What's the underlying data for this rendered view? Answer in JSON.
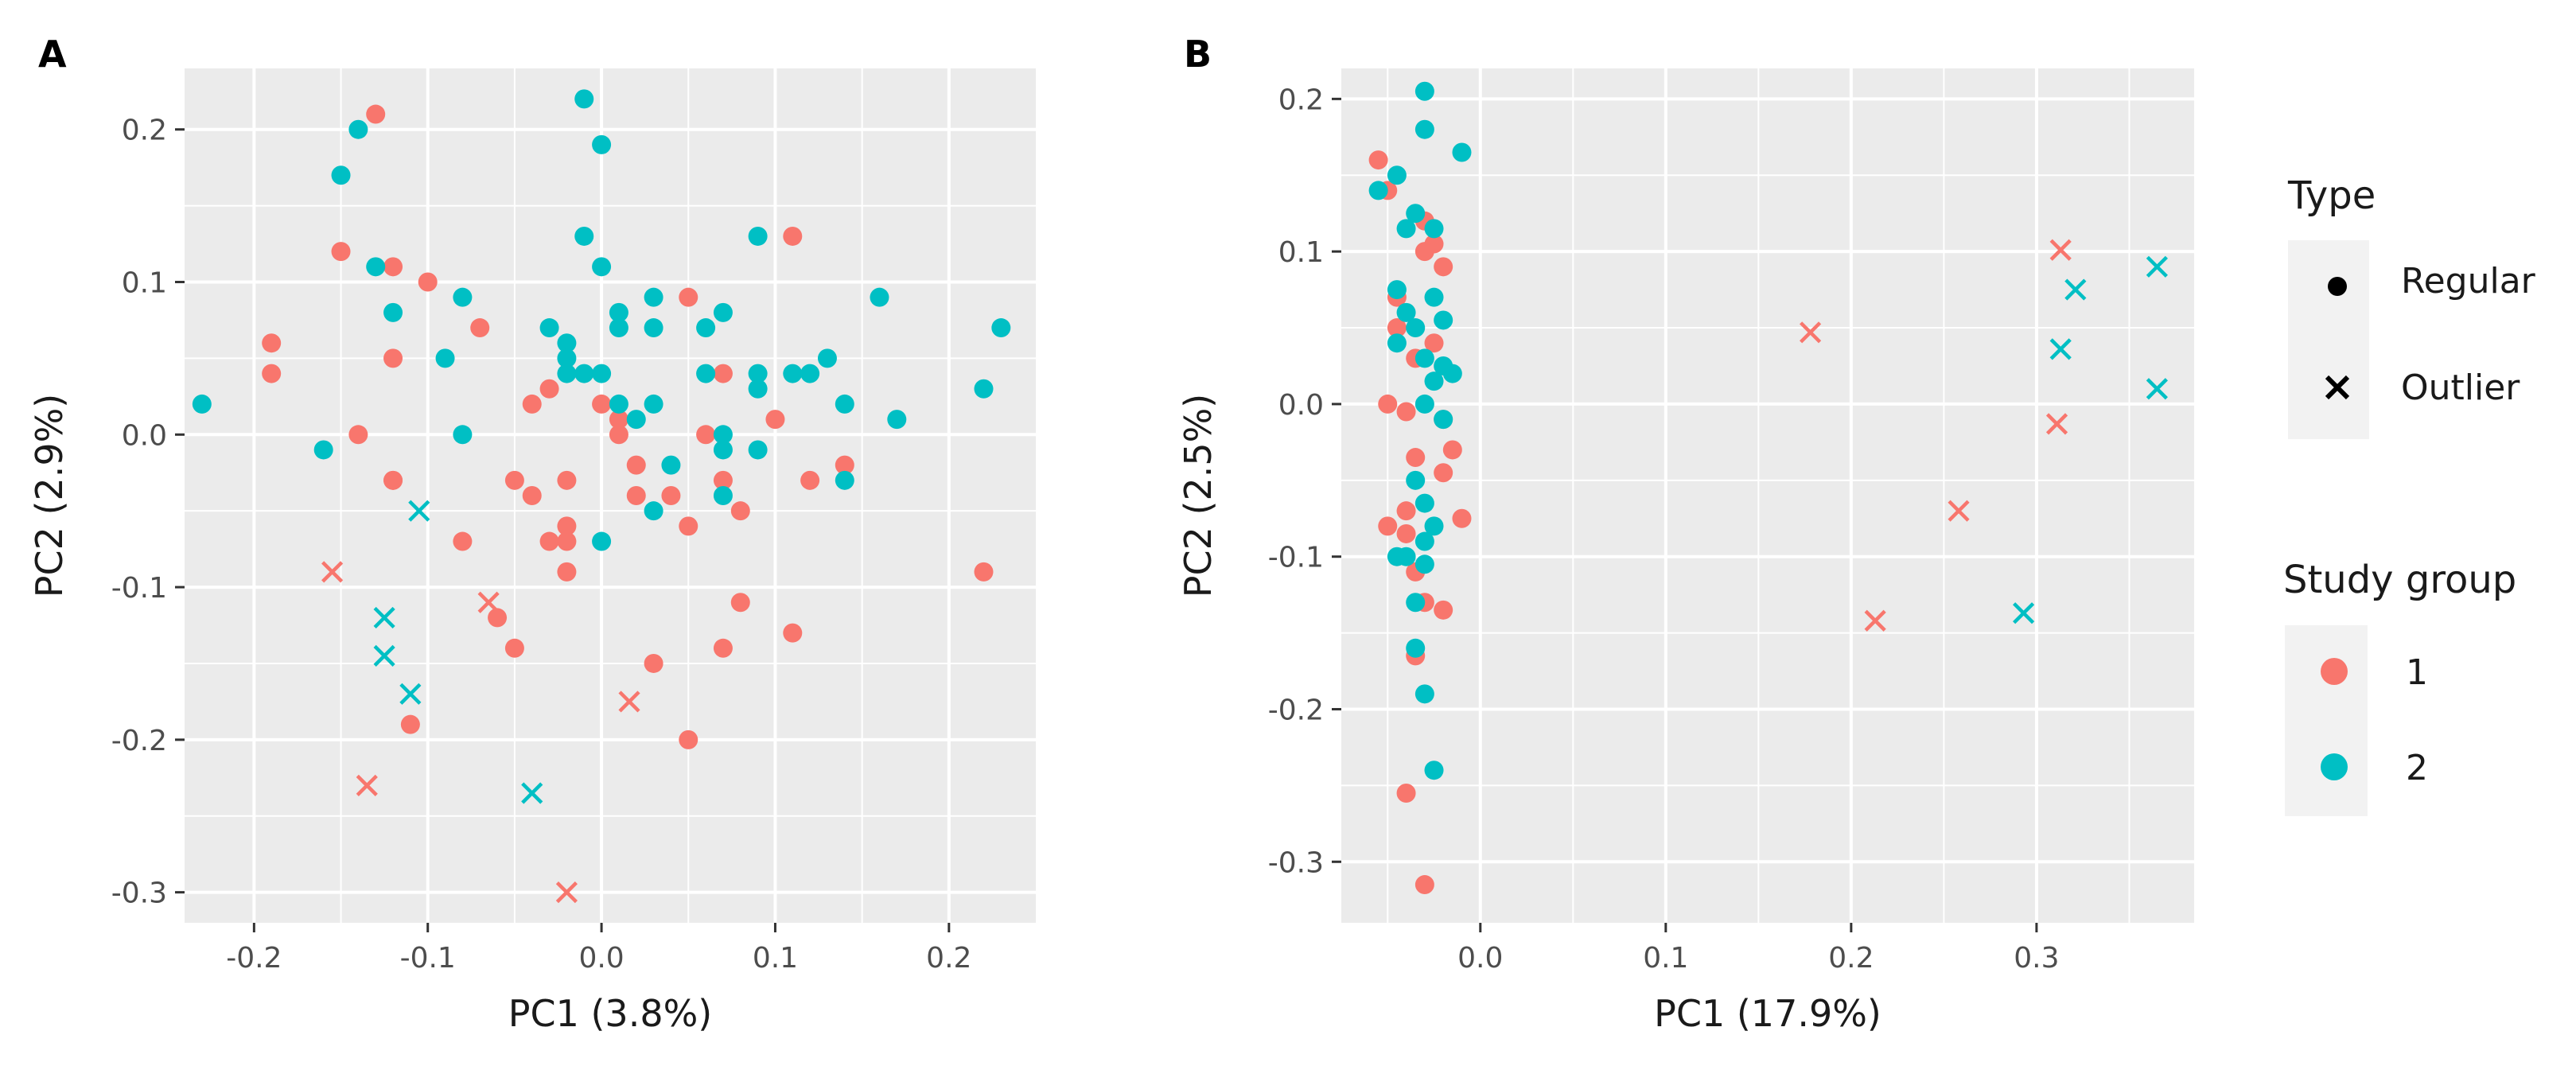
{
  "colors": {
    "group1": "#F8766D",
    "group2": "#00BFC4",
    "panel_bg": "#EBEBEB",
    "grid": "#FFFFFF"
  },
  "legend": {
    "type_title": "Type",
    "type_items": [
      {
        "label": "Regular",
        "shape": "point"
      },
      {
        "label": "Outlier",
        "shape": "cross"
      }
    ],
    "group_title": "Study group",
    "group_items": [
      {
        "label": "1",
        "group": 1
      },
      {
        "label": "2",
        "group": 2
      }
    ]
  },
  "chart_data": [
    {
      "panel": "A",
      "type": "scatter",
      "xlabel": "PC1 (3.8%)",
      "ylabel": "PC2 (2.9%)",
      "xlim": [
        -0.24,
        0.25
      ],
      "ylim": [
        -0.32,
        0.24
      ],
      "xticks": [
        -0.2,
        -0.1,
        0.0,
        0.1,
        0.2
      ],
      "xtick_labels": [
        "-0.2",
        "-0.1",
        "0.0",
        "0.1",
        "0.2"
      ],
      "yticks": [
        -0.3,
        -0.2,
        -0.1,
        0.0,
        0.1,
        0.2
      ],
      "ytick_labels": [
        "-0.3",
        "-0.2",
        "-0.1",
        "0.0",
        "0.1",
        "0.2"
      ],
      "series": [
        {
          "name": "1",
          "type": "Regular",
          "points": [
            [
              -0.13,
              0.21
            ],
            [
              -0.15,
              0.12
            ],
            [
              -0.12,
              0.11
            ],
            [
              -0.19,
              0.06
            ],
            [
              -0.19,
              0.04
            ],
            [
              -0.1,
              0.1
            ],
            [
              -0.12,
              0.05
            ],
            [
              -0.07,
              0.07
            ],
            [
              -0.14,
              0.0
            ],
            [
              -0.12,
              -0.03
            ],
            [
              -0.12,
              -0.03
            ],
            [
              -0.08,
              -0.07
            ],
            [
              -0.11,
              -0.19
            ],
            [
              -0.05,
              -0.14
            ],
            [
              -0.06,
              -0.12
            ],
            [
              -0.03,
              0.03
            ],
            [
              -0.04,
              0.02
            ],
            [
              -0.05,
              -0.03
            ],
            [
              -0.04,
              -0.04
            ],
            [
              -0.02,
              -0.03
            ],
            [
              -0.03,
              -0.07
            ],
            [
              -0.02,
              -0.07
            ],
            [
              -0.02,
              -0.06
            ],
            [
              -0.02,
              -0.09
            ],
            [
              0.0,
              0.02
            ],
            [
              0.01,
              0.01
            ],
            [
              0.01,
              0.0
            ],
            [
              0.02,
              -0.02
            ],
            [
              0.02,
              -0.04
            ],
            [
              0.04,
              -0.04
            ],
            [
              0.03,
              -0.15
            ],
            [
              0.05,
              0.09
            ],
            [
              0.06,
              0.0
            ],
            [
              0.07,
              -0.03
            ],
            [
              0.05,
              -0.06
            ],
            [
              0.07,
              0.04
            ],
            [
              0.08,
              -0.05
            ],
            [
              0.08,
              -0.11
            ],
            [
              0.07,
              -0.14
            ],
            [
              0.05,
              -0.2
            ],
            [
              0.1,
              0.01
            ],
            [
              0.11,
              0.13
            ],
            [
              0.11,
              -0.13
            ],
            [
              0.12,
              -0.03
            ],
            [
              0.14,
              -0.02
            ],
            [
              0.22,
              -0.09
            ]
          ]
        },
        {
          "name": "2",
          "type": "Regular",
          "points": [
            [
              -0.23,
              0.02
            ],
            [
              -0.15,
              0.17
            ],
            [
              -0.14,
              0.2
            ],
            [
              -0.13,
              0.11
            ],
            [
              -0.12,
              0.08
            ],
            [
              -0.16,
              -0.01
            ],
            [
              -0.09,
              0.05
            ],
            [
              -0.08,
              0.09
            ],
            [
              -0.08,
              0.0
            ],
            [
              -0.01,
              0.22
            ],
            [
              0.0,
              0.19
            ],
            [
              -0.01,
              0.13
            ],
            [
              0.0,
              0.11
            ],
            [
              -0.02,
              0.06
            ],
            [
              -0.03,
              0.07
            ],
            [
              -0.02,
              0.05
            ],
            [
              -0.02,
              0.04
            ],
            [
              -0.01,
              0.04
            ],
            [
              0.0,
              0.04
            ],
            [
              0.01,
              0.08
            ],
            [
              0.01,
              0.07
            ],
            [
              0.01,
              0.02
            ],
            [
              0.02,
              0.01
            ],
            [
              0.03,
              0.02
            ],
            [
              0.03,
              0.07
            ],
            [
              0.03,
              0.09
            ],
            [
              0.04,
              -0.02
            ],
            [
              0.03,
              -0.05
            ],
            [
              0.0,
              -0.07
            ],
            [
              0.06,
              0.04
            ],
            [
              0.06,
              0.07
            ],
            [
              0.07,
              0.08
            ],
            [
              0.07,
              0.0
            ],
            [
              0.07,
              -0.01
            ],
            [
              0.07,
              -0.04
            ],
            [
              0.09,
              0.13
            ],
            [
              0.09,
              0.04
            ],
            [
              0.09,
              0.03
            ],
            [
              0.09,
              -0.01
            ],
            [
              0.11,
              0.04
            ],
            [
              0.12,
              0.04
            ],
            [
              0.13,
              0.05
            ],
            [
              0.14,
              0.02
            ],
            [
              0.14,
              -0.03
            ],
            [
              0.16,
              0.09
            ],
            [
              0.17,
              0.01
            ],
            [
              0.22,
              0.03
            ],
            [
              0.23,
              0.07
            ]
          ]
        },
        {
          "name": "1",
          "type": "Outlier",
          "points": [
            [
              -0.155,
              -0.09
            ],
            [
              -0.065,
              -0.11
            ],
            [
              -0.135,
              -0.23
            ],
            [
              0.016,
              -0.175
            ],
            [
              -0.02,
              -0.3
            ]
          ]
        },
        {
          "name": "2",
          "type": "Outlier",
          "points": [
            [
              -0.105,
              -0.05
            ],
            [
              -0.125,
              -0.12
            ],
            [
              -0.125,
              -0.145
            ],
            [
              -0.11,
              -0.17
            ],
            [
              -0.04,
              -0.235
            ]
          ]
        }
      ]
    },
    {
      "panel": "B",
      "type": "scatter",
      "xlabel": "PC1 (17.9%)",
      "ylabel": "PC2 (2.5%)",
      "xlim": [
        -0.075,
        0.385
      ],
      "ylim": [
        -0.34,
        0.22
      ],
      "xticks": [
        0.0,
        0.1,
        0.2,
        0.3
      ],
      "xtick_labels": [
        "0.0",
        "0.1",
        "0.2",
        "0.3"
      ],
      "yticks": [
        -0.3,
        -0.2,
        -0.1,
        0.0,
        0.1,
        0.2
      ],
      "ytick_labels": [
        "-0.3",
        "-0.2",
        "-0.1",
        "0.0",
        "0.1",
        "0.2"
      ],
      "series": [
        {
          "name": "1",
          "type": "Regular",
          "points": [
            [
              -0.055,
              0.16
            ],
            [
              -0.05,
              0.14
            ],
            [
              -0.03,
              0.12
            ],
            [
              -0.025,
              0.105
            ],
            [
              -0.03,
              0.1
            ],
            [
              -0.02,
              0.09
            ],
            [
              -0.045,
              0.07
            ],
            [
              -0.045,
              0.05
            ],
            [
              -0.035,
              0.03
            ],
            [
              -0.025,
              0.04
            ],
            [
              -0.05,
              0.0
            ],
            [
              -0.04,
              -0.005
            ],
            [
              -0.02,
              -0.01
            ],
            [
              -0.035,
              -0.035
            ],
            [
              -0.02,
              -0.045
            ],
            [
              -0.015,
              -0.03
            ],
            [
              -0.04,
              -0.07
            ],
            [
              -0.05,
              -0.08
            ],
            [
              -0.04,
              -0.085
            ],
            [
              -0.01,
              -0.075
            ],
            [
              -0.035,
              -0.11
            ],
            [
              -0.03,
              -0.13
            ],
            [
              -0.02,
              -0.135
            ],
            [
              -0.035,
              -0.165
            ],
            [
              -0.04,
              -0.255
            ],
            [
              -0.03,
              -0.315
            ]
          ]
        },
        {
          "name": "2",
          "type": "Regular",
          "points": [
            [
              -0.03,
              0.205
            ],
            [
              -0.03,
              0.18
            ],
            [
              -0.01,
              0.165
            ],
            [
              -0.045,
              0.15
            ],
            [
              -0.055,
              0.14
            ],
            [
              -0.035,
              0.125
            ],
            [
              -0.04,
              0.115
            ],
            [
              -0.025,
              0.115
            ],
            [
              -0.045,
              0.075
            ],
            [
              -0.025,
              0.07
            ],
            [
              -0.04,
              0.06
            ],
            [
              -0.035,
              0.05
            ],
            [
              -0.02,
              0.055
            ],
            [
              -0.045,
              0.04
            ],
            [
              -0.03,
              0.03
            ],
            [
              -0.02,
              0.025
            ],
            [
              -0.015,
              0.02
            ],
            [
              -0.025,
              0.015
            ],
            [
              -0.03,
              0.0
            ],
            [
              -0.02,
              -0.01
            ],
            [
              -0.035,
              -0.05
            ],
            [
              -0.03,
              -0.065
            ],
            [
              -0.025,
              -0.08
            ],
            [
              -0.03,
              -0.09
            ],
            [
              -0.045,
              -0.1
            ],
            [
              -0.04,
              -0.1
            ],
            [
              -0.03,
              -0.105
            ],
            [
              -0.035,
              -0.13
            ],
            [
              -0.035,
              -0.16
            ],
            [
              -0.03,
              -0.19
            ],
            [
              -0.025,
              -0.24
            ]
          ]
        },
        {
          "name": "1",
          "type": "Outlier",
          "points": [
            [
              0.178,
              0.047
            ],
            [
              0.213,
              -0.142
            ],
            [
              0.258,
              -0.07
            ],
            [
              0.311,
              -0.013
            ],
            [
              0.313,
              0.101
            ]
          ]
        },
        {
          "name": "2",
          "type": "Outlier",
          "points": [
            [
              0.293,
              -0.137
            ],
            [
              0.313,
              0.036
            ],
            [
              0.321,
              0.075
            ],
            [
              0.365,
              0.01
            ],
            [
              0.365,
              0.09
            ]
          ]
        }
      ]
    }
  ]
}
